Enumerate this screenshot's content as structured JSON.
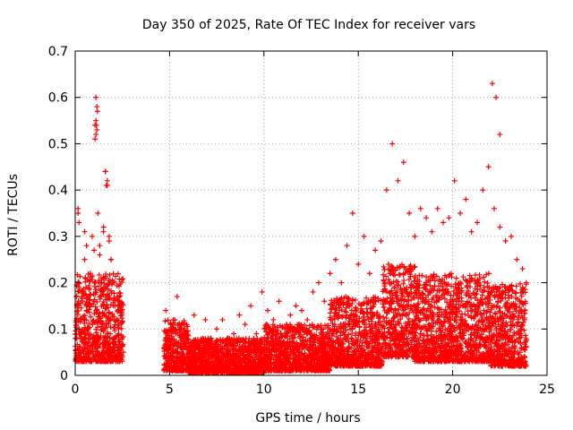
{
  "chart_data": {
    "type": "scatter",
    "title": "Day 350 of 2025, Rate Of TEC Index for receiver vars",
    "xlabel": "GPS time / hours",
    "ylabel": "ROTI / TECUs",
    "xlim": [
      0,
      25
    ],
    "ylim": [
      0,
      0.7
    ],
    "xticks": [
      "0",
      "5",
      "10",
      "15",
      "20",
      "25"
    ],
    "yticks": [
      "0",
      "0.1",
      "0.2",
      "0.3",
      "0.4",
      "0.5",
      "0.6",
      "0.7"
    ],
    "grid": true,
    "marker": "plus",
    "color": "#ff0000",
    "series": [
      {
        "x": [
          0.05,
          0.1,
          0.15,
          0.2,
          0.3,
          0.4,
          0.5,
          0.6,
          0.7,
          0.8,
          0.9,
          1.0,
          1.05,
          1.1,
          1.15,
          1.2,
          1.3,
          1.4,
          1.5,
          1.6,
          1.7,
          1.8,
          1.9,
          2.0,
          2.1,
          2.2,
          2.3,
          2.4,
          2.5,
          2.55,
          1.1,
          1.12,
          1.15,
          1.18,
          1.1,
          1.05,
          1.6,
          1.65,
          1.7,
          0.15,
          0.2,
          0.5,
          0.6,
          1.0,
          1.3,
          1.5,
          1.8,
          1.9,
          2.0,
          4.7,
          4.8,
          5.0,
          5.2,
          5.4,
          5.6,
          5.8,
          6.0,
          6.3,
          6.6,
          6.9,
          7.2,
          7.5,
          7.8,
          8.1,
          8.4,
          8.7,
          9.0,
          9.3,
          9.6,
          9.9,
          10.2,
          10.5,
          10.8,
          11.1,
          11.4,
          11.7,
          12.0,
          12.3,
          12.6,
          12.9,
          13.2,
          13.5,
          13.8,
          14.1,
          14.4,
          14.7,
          15.0,
          15.3,
          15.6,
          15.9,
          16.2,
          16.5,
          16.8,
          17.1,
          17.4,
          17.7,
          18.0,
          18.3,
          18.6,
          18.9,
          19.2,
          19.5,
          19.8,
          20.1,
          20.4,
          20.7,
          21.0,
          21.3,
          21.6,
          21.9,
          22.2,
          22.5,
          22.8,
          23.1,
          23.4,
          23.7,
          23.9,
          5.3,
          5.7,
          6.9,
          8.0,
          9.5,
          10.0,
          11.3,
          12.5,
          13.2,
          14.3,
          14.5,
          15.2,
          16.3,
          16.7,
          16.9,
          17.3,
          17.6,
          18.2,
          18.7,
          19.4,
          19.8,
          20.4,
          20.6,
          21.2,
          21.6,
          21.8,
          22.1,
          22.3,
          22.5,
          22.9,
          23.2,
          23.6,
          5.1,
          6.2,
          7.1,
          8.3,
          9.2,
          10.4,
          11.6,
          12.7,
          13.6,
          14.8,
          15.5,
          16.1,
          16.6,
          17.0,
          17.8,
          18.4,
          19.0,
          19.6,
          20.2,
          20.8,
          21.4,
          22.0,
          22.6,
          23.3,
          23.8
        ],
        "y": [
          0.08,
          0.15,
          0.35,
          0.2,
          0.12,
          0.18,
          0.25,
          0.14,
          0.1,
          0.22,
          0.3,
          0.16,
          0.51,
          0.55,
          0.58,
          0.35,
          0.28,
          0.2,
          0.32,
          0.44,
          0.41,
          0.3,
          0.25,
          0.2,
          0.15,
          0.12,
          0.1,
          0.06,
          0.04,
          0.05,
          0.6,
          0.54,
          0.53,
          0.57,
          0.52,
          0.54,
          0.44,
          0.41,
          0.42,
          0.36,
          0.33,
          0.31,
          0.28,
          0.27,
          0.26,
          0.31,
          0.29,
          0.25,
          0.2,
          0.06,
          0.14,
          0.08,
          0.12,
          0.17,
          0.1,
          0.09,
          0.07,
          0.13,
          0.06,
          0.12,
          0.08,
          0.1,
          0.12,
          0.07,
          0.09,
          0.13,
          0.11,
          0.15,
          0.09,
          0.18,
          0.14,
          0.12,
          0.16,
          0.1,
          0.13,
          0.15,
          0.14,
          0.12,
          0.18,
          0.2,
          0.16,
          0.22,
          0.25,
          0.2,
          0.28,
          0.35,
          0.24,
          0.3,
          0.22,
          0.27,
          0.29,
          0.4,
          0.5,
          0.42,
          0.46,
          0.35,
          0.3,
          0.36,
          0.34,
          0.31,
          0.36,
          0.33,
          0.34,
          0.42,
          0.35,
          0.38,
          0.31,
          0.33,
          0.4,
          0.45,
          0.36,
          0.32,
          0.29,
          0.3,
          0.25,
          0.23,
          0.2,
          0.05,
          0.04,
          0.03,
          0.02,
          0.05,
          0.04,
          0.03,
          0.06,
          0.05,
          0.08,
          0.06,
          0.07,
          0.09,
          0.08,
          0.1,
          0.09,
          0.08,
          0.12,
          0.1,
          0.11,
          0.09,
          0.12,
          0.1,
          0.13,
          0.11,
          0.1,
          0.63,
          0.6,
          0.52,
          0.14,
          0.12,
          0.1,
          0.02,
          0.01,
          0.02,
          0.01,
          0.02,
          0.01,
          0.02,
          0.02,
          0.03,
          0.03,
          0.04,
          0.05,
          0.06,
          0.05,
          0.06,
          0.05,
          0.06,
          0.07,
          0.05,
          0.06,
          0.05,
          0.07,
          0.06,
          0.05,
          0.04
        ]
      }
    ],
    "density_bands": [
      {
        "x0": 0.0,
        "x1": 2.55,
        "lo": 0.03,
        "hi": 0.22
      },
      {
        "x0": 4.7,
        "x1": 6.0,
        "lo": 0.01,
        "hi": 0.12
      },
      {
        "x0": 6.0,
        "x1": 10.0,
        "lo": 0.005,
        "hi": 0.08
      },
      {
        "x0": 10.0,
        "x1": 13.5,
        "lo": 0.01,
        "hi": 0.11
      },
      {
        "x0": 13.5,
        "x1": 16.3,
        "lo": 0.02,
        "hi": 0.17
      },
      {
        "x0": 16.3,
        "x1": 18.0,
        "lo": 0.04,
        "hi": 0.24
      },
      {
        "x0": 18.0,
        "x1": 22.0,
        "lo": 0.03,
        "hi": 0.22
      },
      {
        "x0": 22.0,
        "x1": 23.9,
        "lo": 0.02,
        "hi": 0.2
      }
    ]
  }
}
